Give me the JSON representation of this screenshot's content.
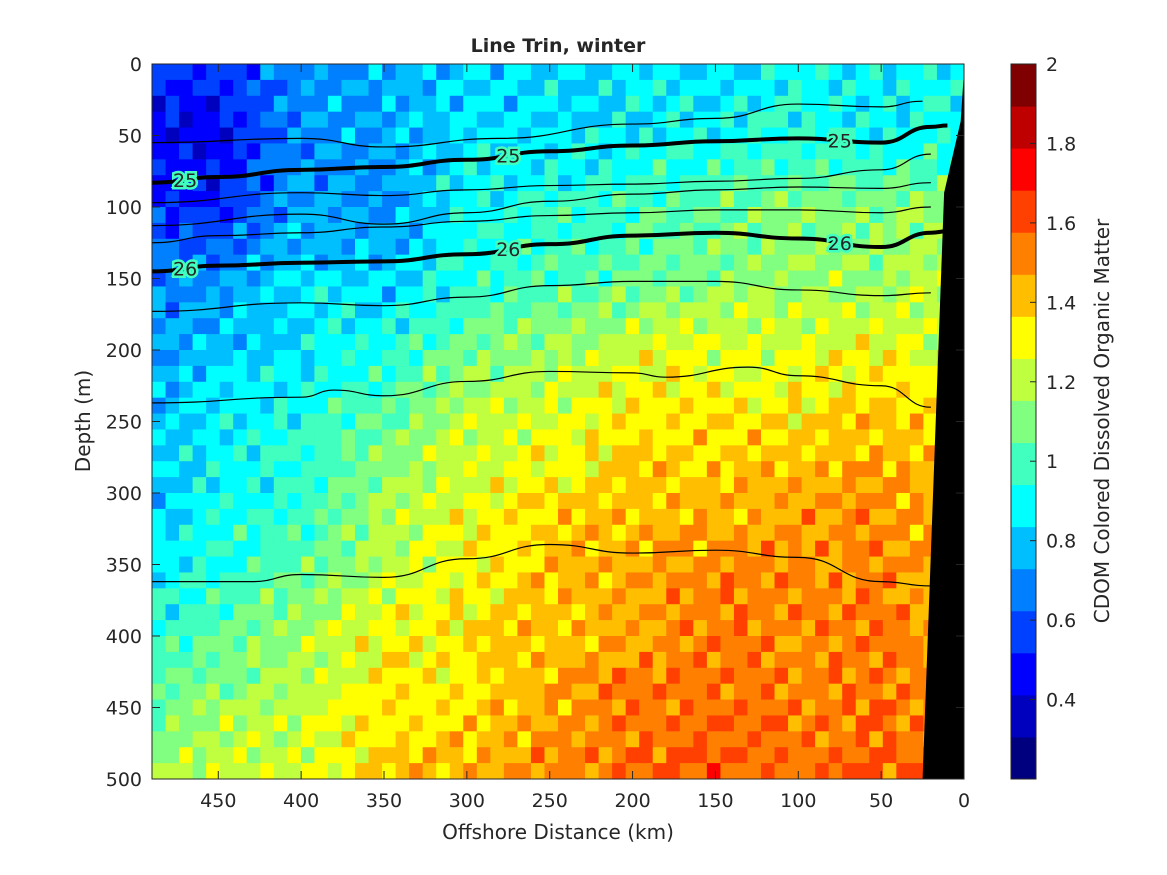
{
  "chart_data": {
    "type": "heatmap",
    "title": "Line Trin, winter",
    "xlabel": "Offshore Distance (km)",
    "ylabel": "Depth (m)",
    "xlim": [
      490,
      0
    ],
    "ylim": [
      500,
      0
    ],
    "x_reversed": true,
    "y_reversed": true,
    "x_ticks": [
      "450",
      "400",
      "350",
      "300",
      "250",
      "200",
      "150",
      "100",
      "50",
      "0"
    ],
    "y_ticks": [
      "0",
      "50",
      "100",
      "150",
      "200",
      "250",
      "300",
      "350",
      "400",
      "450",
      "500"
    ],
    "colorbar": {
      "label": "CDOM Colored Dissolved Organic Matter",
      "range": [
        0.2,
        2.0
      ],
      "ticks": [
        "0.4",
        "0.6",
        "0.8",
        "1",
        "1.2",
        "1.4",
        "1.6",
        "1.8",
        "2"
      ],
      "colors": [
        "#00007f",
        "#0000bf",
        "#0000ff",
        "#0040ff",
        "#0080ff",
        "#00bfff",
        "#00ffff",
        "#40ffbf",
        "#80ff80",
        "#bfff40",
        "#ffff00",
        "#ffbf00",
        "#ff8000",
        "#ff4000",
        "#ff0000",
        "#bf0000",
        "#7f0000"
      ]
    },
    "value_field_grid": {
      "x_km": [
        490,
        450,
        400,
        350,
        300,
        250,
        200,
        150,
        100,
        50,
        20
      ],
      "depth_m": [
        0,
        50,
        100,
        150,
        200,
        250,
        300,
        350,
        400,
        450,
        500
      ],
      "values": [
        [
          0.5,
          0.55,
          0.7,
          0.75,
          0.8,
          0.85,
          0.85,
          0.85,
          0.9,
          0.85,
          0.9
        ],
        [
          0.45,
          0.45,
          0.7,
          0.75,
          0.85,
          0.85,
          0.85,
          0.9,
          0.95,
          0.9,
          0.9
        ],
        [
          0.55,
          0.5,
          0.75,
          0.7,
          0.9,
          0.95,
          1.0,
          1.05,
          1.1,
          1.1,
          1.15
        ],
        [
          0.7,
          0.7,
          0.85,
          0.8,
          0.95,
          1.0,
          1.05,
          1.1,
          1.15,
          1.15,
          1.2
        ],
        [
          0.75,
          0.8,
          0.85,
          0.95,
          1.1,
          1.15,
          1.25,
          1.25,
          1.25,
          1.3,
          1.25
        ],
        [
          0.8,
          0.85,
          0.95,
          1.05,
          1.2,
          1.25,
          1.35,
          1.35,
          1.35,
          1.4,
          1.35
        ],
        [
          0.8,
          0.9,
          0.95,
          1.15,
          1.25,
          1.35,
          1.4,
          1.4,
          1.45,
          1.5,
          1.45
        ],
        [
          0.85,
          0.95,
          1.05,
          1.2,
          1.3,
          1.4,
          1.45,
          1.5,
          1.5,
          1.5,
          1.45
        ],
        [
          0.95,
          1.05,
          1.15,
          1.3,
          1.35,
          1.4,
          1.45,
          1.55,
          1.5,
          1.55,
          1.45
        ],
        [
          1.05,
          1.15,
          1.2,
          1.35,
          1.35,
          1.45,
          1.55,
          1.55,
          1.55,
          1.55,
          1.5
        ],
        [
          1.15,
          1.25,
          1.25,
          1.4,
          1.45,
          1.5,
          1.55,
          1.6,
          1.55,
          1.6,
          1.55
        ]
      ]
    },
    "contours": [
      {
        "level": "",
        "labeled": false,
        "points": [
          [
            490,
            55
          ],
          [
            400,
            52
          ],
          [
            350,
            58
          ],
          [
            280,
            52
          ],
          [
            200,
            42
          ],
          [
            150,
            38
          ],
          [
            100,
            28
          ],
          [
            50,
            30
          ],
          [
            25,
            26
          ]
        ]
      },
      {
        "level": "25",
        "labeled": true,
        "points": [
          [
            490,
            83
          ],
          [
            450,
            79
          ],
          [
            400,
            74
          ],
          [
            350,
            72
          ],
          [
            300,
            67
          ],
          [
            250,
            61
          ],
          [
            200,
            57
          ],
          [
            150,
            54
          ],
          [
            100,
            52
          ],
          [
            50,
            55
          ],
          [
            20,
            44
          ],
          [
            10,
            43
          ]
        ]
      },
      {
        "level": "",
        "labeled": false,
        "points": [
          [
            490,
            97
          ],
          [
            400,
            90
          ],
          [
            350,
            92
          ],
          [
            300,
            88
          ],
          [
            250,
            85
          ],
          [
            200,
            84
          ],
          [
            150,
            82
          ],
          [
            100,
            80
          ],
          [
            50,
            74
          ],
          [
            20,
            63
          ]
        ]
      },
      {
        "level": "",
        "labeled": false,
        "points": [
          [
            490,
            113
          ],
          [
            400,
            105
          ],
          [
            350,
            112
          ],
          [
            300,
            104
          ],
          [
            250,
            96
          ],
          [
            200,
            91
          ],
          [
            150,
            88
          ],
          [
            100,
            86
          ],
          [
            50,
            87
          ],
          [
            20,
            83
          ]
        ]
      },
      {
        "level": "",
        "labeled": false,
        "points": [
          [
            490,
            125
          ],
          [
            450,
            120
          ],
          [
            400,
            118
          ],
          [
            350,
            114
          ],
          [
            300,
            110
          ],
          [
            250,
            106
          ],
          [
            200,
            104
          ],
          [
            150,
            102
          ],
          [
            100,
            102
          ],
          [
            50,
            104
          ],
          [
            20,
            100
          ]
        ]
      },
      {
        "level": "26",
        "labeled": true,
        "points": [
          [
            490,
            145
          ],
          [
            450,
            141
          ],
          [
            400,
            139
          ],
          [
            350,
            138
          ],
          [
            300,
            133
          ],
          [
            250,
            126
          ],
          [
            200,
            120
          ],
          [
            150,
            118
          ],
          [
            100,
            122
          ],
          [
            50,
            128
          ],
          [
            20,
            118
          ],
          [
            10,
            117
          ]
        ]
      },
      {
        "level": "",
        "labeled": false,
        "points": [
          [
            490,
            173
          ],
          [
            400,
            167
          ],
          [
            350,
            169
          ],
          [
            300,
            163
          ],
          [
            250,
            155
          ],
          [
            200,
            152
          ],
          [
            150,
            152
          ],
          [
            100,
            158
          ],
          [
            50,
            162
          ],
          [
            20,
            160
          ]
        ]
      },
      {
        "level": "",
        "labeled": false,
        "points": [
          [
            490,
            237
          ],
          [
            400,
            233
          ],
          [
            380,
            228
          ],
          [
            350,
            232
          ],
          [
            300,
            222
          ],
          [
            250,
            215
          ],
          [
            200,
            216
          ],
          [
            180,
            219
          ],
          [
            130,
            212
          ],
          [
            100,
            218
          ],
          [
            50,
            225
          ],
          [
            20,
            240
          ]
        ]
      },
      {
        "level": "",
        "labeled": false,
        "points": [
          [
            490,
            362
          ],
          [
            430,
            362
          ],
          [
            400,
            357
          ],
          [
            350,
            359
          ],
          [
            300,
            346
          ],
          [
            250,
            336
          ],
          [
            200,
            342
          ],
          [
            150,
            340
          ],
          [
            100,
            345
          ],
          [
            50,
            362
          ],
          [
            20,
            365
          ]
        ]
      }
    ],
    "bathymetry_mask": {
      "color": "#000000",
      "points": [
        [
          0,
          5
        ],
        [
          0,
          500
        ],
        [
          25,
          500
        ],
        [
          12,
          90
        ],
        [
          2,
          40
        ]
      ]
    }
  }
}
